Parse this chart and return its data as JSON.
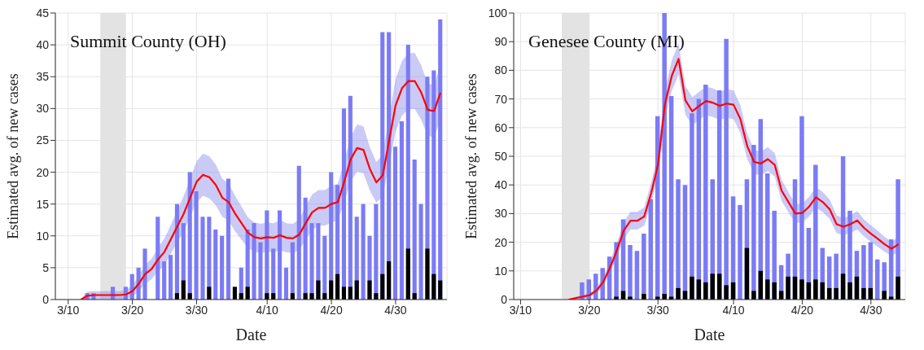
{
  "chart_data": [
    {
      "type": "bar",
      "title": "Summit County (OH)",
      "xlabel": "Date",
      "ylabel": "Estimated avg. of new cases",
      "xlim": [
        "--03-08",
        "--05-08"
      ],
      "xticks": [
        {
          "value": "--03-10",
          "label": "3/10"
        },
        {
          "value": "--03-20",
          "label": "3/20"
        },
        {
          "value": "--03-30",
          "label": "3/30"
        },
        {
          "value": "--04-10",
          "label": "4/10"
        },
        {
          "value": "--04-20",
          "label": "4/20"
        },
        {
          "value": "--04-30",
          "label": "4/30"
        }
      ],
      "ylim": [
        0,
        45
      ],
      "yticks": [
        0,
        5,
        10,
        15,
        20,
        25,
        30,
        35,
        40,
        45
      ],
      "grid": true,
      "bands": [
        {
          "axis": "x",
          "from": "--03-15",
          "to": "--03-19",
          "color": "#e3e3e3"
        }
      ],
      "x": [
        "--03-13",
        "--03-14",
        "--03-15",
        "--03-16",
        "--03-17",
        "--03-18",
        "--03-19",
        "--03-20",
        "--03-21",
        "--03-22",
        "--03-23",
        "--03-24",
        "--03-25",
        "--03-26",
        "--03-27",
        "--03-28",
        "--03-29",
        "--03-30",
        "--03-31",
        "--04-01",
        "--04-02",
        "--04-03",
        "--04-04",
        "--04-05",
        "--04-06",
        "--04-07",
        "--04-08",
        "--04-09",
        "--04-10",
        "--04-11",
        "--04-12",
        "--04-13",
        "--04-14",
        "--04-15",
        "--04-16",
        "--04-17",
        "--04-18",
        "--04-19",
        "--04-20",
        "--04-21",
        "--04-22",
        "--04-23",
        "--04-24",
        "--04-25",
        "--04-26",
        "--04-27",
        "--04-28",
        "--04-29",
        "--04-30",
        "--05-01",
        "--05-02",
        "--05-03",
        "--05-04",
        "--05-05",
        "--05-06",
        "--05-07"
      ],
      "series": [
        {
          "color": "#7b7bf5",
          "values": [
            1,
            1,
            0,
            0,
            2,
            0,
            2,
            4,
            5,
            8,
            0,
            13,
            6,
            7,
            15,
            12,
            20,
            17,
            13,
            13,
            11,
            10,
            19,
            null,
            5,
            11,
            12,
            9,
            14,
            8,
            14,
            5,
            9,
            21,
            16,
            12,
            12,
            10,
            20,
            18,
            30,
            32,
            13,
            15,
            10,
            15,
            42,
            42,
            24,
            28,
            40,
            22,
            15,
            35,
            36,
            44
          ]
        },
        {
          "color": "#000000",
          "x": [
            "--03-27",
            "--03-28",
            "--03-29",
            "--04-01",
            "--04-05",
            "--04-06",
            "--04-07",
            "--04-10",
            "--04-11",
            "--04-14",
            "--04-16",
            "--04-17",
            "--04-18",
            "--04-19",
            "--04-20",
            "--04-21",
            "--04-22",
            "--04-23",
            "--04-24",
            "--04-26",
            "--04-27",
            "--04-28",
            "--04-29",
            "--05-02",
            "--05-03",
            "--05-05",
            "--05-06",
            "--05-07"
          ],
          "values": [
            1,
            3,
            1,
            2,
            2,
            1,
            2,
            1,
            1,
            1,
            1,
            1,
            3,
            1,
            3,
            4,
            2,
            2,
            3,
            3,
            1,
            4,
            6,
            8,
            1,
            8,
            4,
            3
          ]
        },
        {
          "type": "line",
          "color": "#ff0000",
          "x": [
            "--03-12",
            "--03-13",
            "--03-14",
            "--03-15",
            "--03-16",
            "--03-17",
            "--03-18",
            "--03-19",
            "--03-20",
            "--03-21",
            "--03-22",
            "--03-23",
            "--03-24",
            "--03-25",
            "--03-26",
            "--03-27",
            "--03-28",
            "--03-29",
            "--03-30",
            "--03-31",
            "--04-01",
            "--04-02",
            "--04-03",
            "--04-04",
            "--04-05",
            "--04-06",
            "--04-07",
            "--04-08",
            "--04-09",
            "--04-10",
            "--04-11",
            "--04-12",
            "--04-13",
            "--04-14",
            "--04-15",
            "--04-16",
            "--04-17",
            "--04-18",
            "--04-19",
            "--04-20",
            "--04-21",
            "--04-22",
            "--04-23",
            "--04-24",
            "--04-25",
            "--04-26",
            "--04-27",
            "--04-28",
            "--04-29",
            "--04-30",
            "--05-01",
            "--05-02",
            "--05-03",
            "--05-04",
            "--05-05",
            "--05-06",
            "--05-07"
          ],
          "values": [
            0,
            0.6,
            0.7,
            0.7,
            0.7,
            0.7,
            0.7,
            0.8,
            1.3,
            2.5,
            4,
            4.8,
            6.3,
            7.5,
            9.5,
            11.5,
            13.5,
            16,
            18.5,
            19.6,
            19.2,
            18,
            16,
            15.3,
            13.5,
            12,
            10.5,
            9.8,
            9.6,
            9.8,
            9.7,
            10.1,
            9.7,
            9.6,
            10.2,
            12,
            13.7,
            14.4,
            14.4,
            15,
            15.3,
            18.5,
            22,
            23.8,
            23.5,
            20.5,
            18.4,
            19.5,
            25,
            30.5,
            33.2,
            34.3,
            34.3,
            32.5,
            29.8,
            29.6,
            32.5
          ],
          "lower": [
            0,
            0,
            0.1,
            0.1,
            0.1,
            0.1,
            0.1,
            0.1,
            0.4,
            1.3,
            2.5,
            3.2,
            4.4,
            5.4,
            7.2,
            9,
            10.7,
            13,
            15.3,
            16.3,
            15.9,
            14.8,
            13,
            12.4,
            10.7,
            9.4,
            8.1,
            7.5,
            7.3,
            7.5,
            7.4,
            7.7,
            7.4,
            7.3,
            7.8,
            9.4,
            10.9,
            11.6,
            11.6,
            12.1,
            12.4,
            15.3,
            18.5,
            20.1,
            19.8,
            17.1,
            15.2,
            16.2,
            21.2,
            26.4,
            28.9,
            29.9,
            29.9,
            28.2,
            25.7,
            25.5,
            28.2
          ],
          "upper": [
            0,
            1.2,
            1.3,
            1.3,
            1.3,
            1.3,
            1.3,
            1.5,
            2.2,
            3.7,
            5.5,
            6.4,
            8.2,
            9.6,
            11.8,
            14,
            16.3,
            19,
            21.7,
            22.9,
            22.5,
            21.2,
            19,
            18.2,
            16.3,
            14.6,
            12.9,
            12.1,
            11.9,
            12.1,
            12,
            12.5,
            12,
            11.9,
            12.6,
            14.6,
            16.5,
            17.2,
            17.2,
            17.9,
            18.2,
            21.7,
            25.5,
            27.5,
            27.2,
            23.9,
            21.6,
            22.8,
            28.8,
            34.6,
            37.5,
            38.7,
            38.7,
            36.8,
            33.9,
            33.7,
            36.8
          ]
        }
      ]
    },
    {
      "type": "bar",
      "title": "Genesee County (MI)",
      "xlabel": "Date",
      "ylabel": "Estimated avg. of new cases",
      "xlim": [
        "--03-09",
        "--05-05"
      ],
      "xticks": [
        {
          "value": "--03-10",
          "label": "3/10"
        },
        {
          "value": "--03-20",
          "label": "3/20"
        },
        {
          "value": "--03-30",
          "label": "3/30"
        },
        {
          "value": "--04-10",
          "label": "4/10"
        },
        {
          "value": "--04-20",
          "label": "4/20"
        },
        {
          "value": "--04-30",
          "label": "4/30"
        }
      ],
      "ylim": [
        0,
        100
      ],
      "yticks": [
        0,
        10,
        20,
        30,
        40,
        50,
        60,
        70,
        80,
        90,
        100
      ],
      "grid": true,
      "bands": [
        {
          "axis": "x",
          "from": "--03-16",
          "to": "--03-20",
          "color": "#e3e3e3"
        }
      ],
      "x": [
        "--03-19",
        "--03-20",
        "--03-21",
        "--03-22",
        "--03-23",
        "--03-24",
        "--03-25",
        "--03-26",
        "--03-27",
        "--03-28",
        "--03-29",
        "--03-30",
        "--03-31",
        "--04-01",
        "--04-02",
        "--04-03",
        "--04-04",
        "--04-05",
        "--04-06",
        "--04-07",
        "--04-08",
        "--04-09",
        "--04-10",
        "--04-11",
        "--04-12",
        "--04-13",
        "--04-14",
        "--04-15",
        "--04-16",
        "--04-17",
        "--04-18",
        "--04-19",
        "--04-20",
        "--04-21",
        "--04-22",
        "--04-23",
        "--04-24",
        "--04-25",
        "--04-26",
        "--04-27",
        "--04-28",
        "--04-29",
        "--04-30",
        "--05-01",
        "--05-02",
        "--05-03",
        "--05-04"
      ],
      "series": [
        {
          "color": "#7b7bf5",
          "values": [
            6,
            7,
            9,
            11,
            15,
            20,
            28,
            19,
            17,
            23,
            35,
            64,
            100,
            71,
            42,
            40,
            65,
            70,
            75,
            42,
            73,
            91,
            36,
            33,
            42,
            54,
            63,
            44,
            31,
            12,
            16,
            42,
            64,
            25,
            47,
            18,
            15,
            16,
            50,
            31,
            17,
            19,
            20,
            14,
            13,
            21,
            42
          ]
        },
        {
          "color": "#000000",
          "x": [
            "--03-24",
            "--03-25",
            "--03-26",
            "--03-28",
            "--03-30",
            "--03-31",
            "--04-01",
            "--04-02",
            "--04-03",
            "--04-04",
            "--04-05",
            "--04-06",
            "--04-07",
            "--04-08",
            "--04-09",
            "--04-10",
            "--04-12",
            "--04-13",
            "--04-14",
            "--04-15",
            "--04-16",
            "--04-17",
            "--04-18",
            "--04-19",
            "--04-20",
            "--04-21",
            "--04-22",
            "--04-23",
            "--04-24",
            "--04-25",
            "--04-26",
            "--04-27",
            "--04-28",
            "--04-29",
            "--04-30",
            "--05-02",
            "--05-03",
            "--05-04"
          ],
          "values": [
            1,
            3,
            1,
            2,
            1,
            2,
            1,
            4,
            3,
            8,
            7,
            6,
            9,
            9,
            5,
            6,
            18,
            3,
            10,
            7,
            6,
            3,
            8,
            8,
            7,
            6,
            7,
            6,
            4,
            4,
            9,
            6,
            8,
            4,
            4,
            3,
            1,
            8
          ]
        },
        {
          "type": "line",
          "color": "#ff0000",
          "x": [
            "--03-17",
            "--03-18",
            "--03-19",
            "--03-20",
            "--03-21",
            "--03-22",
            "--03-23",
            "--03-24",
            "--03-25",
            "--03-26",
            "--03-27",
            "--03-28",
            "--03-29",
            "--03-30",
            "--03-31",
            "--04-01",
            "--04-02",
            "--04-03",
            "--04-04",
            "--04-05",
            "--04-06",
            "--04-07",
            "--04-08",
            "--04-09",
            "--04-10",
            "--04-11",
            "--04-12",
            "--04-13",
            "--04-14",
            "--04-15",
            "--04-16",
            "--04-17",
            "--04-18",
            "--04-19",
            "--04-20",
            "--04-21",
            "--04-22",
            "--04-23",
            "--04-24",
            "--04-25",
            "--04-26",
            "--04-27",
            "--04-28",
            "--04-29",
            "--04-30",
            "--05-01",
            "--05-02",
            "--05-03",
            "--05-04"
          ],
          "values": [
            0,
            0.5,
            1,
            1.5,
            3,
            6,
            11,
            17,
            24,
            27.5,
            27.5,
            29,
            37,
            47,
            68,
            78,
            84,
            69.5,
            65.7,
            67.6,
            69.3,
            68.7,
            67.6,
            68.4,
            68,
            63,
            53.5,
            48,
            47.5,
            49,
            47,
            38,
            34,
            30,
            30.2,
            32.4,
            35.7,
            34,
            31.5,
            26.3,
            25.4,
            26.3,
            27.6,
            25,
            23,
            21.2,
            19.3,
            17.7,
            19.3
          ],
          "lower": [
            0,
            0.1,
            0.4,
            0.8,
            2,
            4.5,
            9,
            14.5,
            21.1,
            24.4,
            24.4,
            25.8,
            33.4,
            42.9,
            63.1,
            72.7,
            78.5,
            64.5,
            60.8,
            62.7,
            64.3,
            63.7,
            62.7,
            63.4,
            63,
            58.2,
            49.1,
            43.8,
            43.4,
            44.8,
            42.9,
            34.3,
            30.5,
            26.7,
            26.9,
            29,
            32.1,
            30.5,
            28.1,
            23.2,
            22.4,
            23.2,
            24.4,
            22,
            20.1,
            18.4,
            16.7,
            15.2,
            16.7
          ],
          "upper": [
            0,
            0.9,
            1.6,
            2.2,
            4,
            7.5,
            13,
            19.5,
            26.9,
            30.6,
            30.6,
            32.2,
            40.6,
            51.1,
            72.9,
            83.3,
            89.5,
            74.5,
            70.6,
            72.5,
            74.3,
            73.7,
            72.5,
            73.4,
            73,
            67.8,
            57.9,
            52.2,
            51.6,
            53.2,
            51.1,
            41.7,
            37.5,
            33.3,
            33.5,
            35.8,
            39.3,
            37.5,
            34.9,
            29.4,
            28.4,
            29.4,
            30.8,
            28,
            25.9,
            24,
            21.9,
            20.2,
            21.9
          ]
        }
      ]
    }
  ]
}
